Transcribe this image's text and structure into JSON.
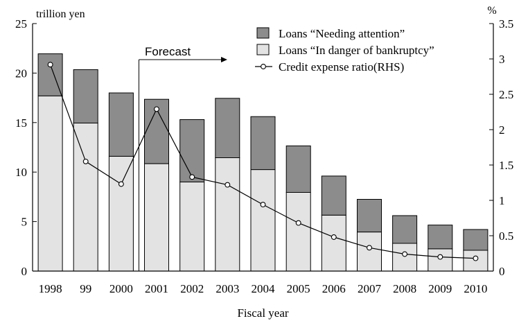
{
  "chart_data": {
    "type": "bar",
    "stacked": true,
    "title": "",
    "xlabel": "Fiscal year",
    "ylabel_left": "trillion yen",
    "ylabel_right": "%",
    "categories": [
      "1998",
      "99",
      "2000",
      "2001",
      "2002",
      "2003",
      "2004",
      "2005",
      "2006",
      "2007",
      "2008",
      "2009",
      "2010"
    ],
    "ylim_left": [
      0,
      25
    ],
    "yticks_left": [
      "0",
      "5",
      "10",
      "15",
      "20",
      "25"
    ],
    "ylim_right": [
      0,
      3.5
    ],
    "yticks_right": [
      "0",
      "0.5",
      "1",
      "1.5",
      "2",
      "2.5",
      "3",
      "3.5"
    ],
    "series": [
      {
        "name": "Loans “In danger of bankruptcy”",
        "kind": "bar",
        "axis": "left",
        "color": "#e3e3e3",
        "values": [
          17.7,
          14.95,
          11.6,
          10.85,
          9.0,
          11.45,
          10.25,
          7.95,
          5.65,
          3.95,
          2.8,
          2.25,
          2.1
        ]
      },
      {
        "name": "Loans “Needing attention”",
        "kind": "bar",
        "axis": "left",
        "color": "#8c8c8c",
        "values": [
          4.25,
          5.4,
          6.4,
          6.5,
          6.3,
          6.0,
          5.35,
          4.7,
          3.95,
          3.3,
          2.8,
          2.4,
          2.1
        ]
      },
      {
        "name": "Credit expense ratio(RHS)",
        "kind": "line",
        "axis": "right",
        "color": "#000000",
        "values": [
          2.92,
          1.55,
          1.23,
          2.29,
          1.33,
          1.22,
          0.94,
          0.68,
          0.48,
          0.33,
          0.24,
          0.2,
          0.18
        ]
      }
    ],
    "annotation": {
      "text": "Forecast",
      "from_index": 2.5
    },
    "legend_position": "top-right",
    "grid": false
  }
}
